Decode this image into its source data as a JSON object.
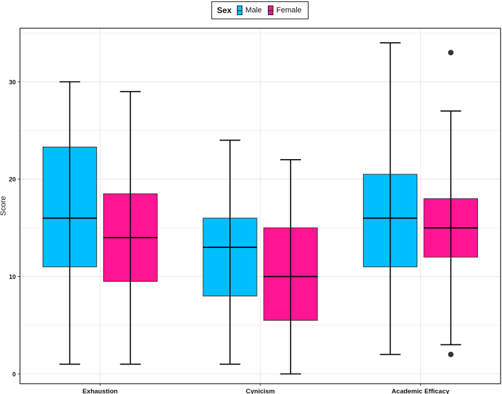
{
  "legend": {
    "title": "Sex",
    "placement": "top-center"
  },
  "colors": {
    "male": "#00BFFF",
    "female": "#FF1493",
    "stroke": "#000000",
    "grid": "#e6e6e6"
  },
  "chart_data": {
    "type": "boxplot",
    "title": "",
    "xlabel": "",
    "ylabel": "Score",
    "ylim": [
      -1,
      35.5
    ],
    "yticks": [
      0,
      10,
      20,
      30
    ],
    "grid": true,
    "categories": [
      "Exhaustion",
      "Cynicism",
      "Academic Efficacy"
    ],
    "series": [
      {
        "name": "Male",
        "color": "#00BFFF",
        "boxes": [
          {
            "min": 1,
            "q1": 11,
            "median": 16,
            "q3": 23.3,
            "max": 30,
            "outliers": []
          },
          {
            "min": 1,
            "q1": 8,
            "median": 13,
            "q3": 16,
            "max": 24,
            "outliers": []
          },
          {
            "min": 2,
            "q1": 11,
            "median": 16,
            "q3": 20.5,
            "max": 34,
            "outliers": []
          }
        ]
      },
      {
        "name": "Female",
        "color": "#FF1493",
        "boxes": [
          {
            "min": 1,
            "q1": 9.5,
            "median": 14,
            "q3": 18.5,
            "max": 29,
            "outliers": []
          },
          {
            "min": 0,
            "q1": 5.5,
            "median": 10,
            "q3": 15,
            "max": 22,
            "outliers": []
          },
          {
            "min": 3,
            "q1": 12,
            "median": 15,
            "q3": 18,
            "max": 27,
            "outliers": [
              33,
              2
            ]
          }
        ]
      }
    ]
  }
}
